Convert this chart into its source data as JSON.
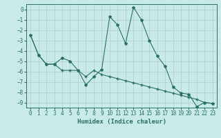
{
  "xlabel": "Humidex (Indice chaleur)",
  "ylabel": "",
  "bg_color": "#c8eaea",
  "grid_color": "#b0cccc",
  "line_color": "#2a7060",
  "line1_x": [
    0,
    1,
    2,
    3,
    4,
    5,
    6,
    7,
    8,
    9,
    10,
    11,
    12,
    13,
    14,
    15,
    16,
    17,
    18,
    19,
    20,
    21,
    22,
    23
  ],
  "line1_y": [
    -2.5,
    -4.4,
    -5.3,
    -5.3,
    -4.7,
    -5.0,
    -5.9,
    -7.3,
    -6.5,
    -5.8,
    -0.7,
    -1.5,
    -3.3,
    0.2,
    -1.0,
    -3.0,
    -4.5,
    -5.5,
    -7.5,
    -8.1,
    -8.2,
    -9.4,
    -9.0,
    -9.1
  ],
  "line2_x": [
    0,
    1,
    2,
    3,
    4,
    5,
    6,
    7,
    8,
    9,
    10,
    11,
    12,
    13,
    14,
    15,
    16,
    17,
    18,
    19,
    20,
    21,
    22,
    23
  ],
  "line2_y": [
    -2.5,
    -4.4,
    -5.3,
    -5.3,
    -5.9,
    -5.9,
    -5.9,
    -6.5,
    -5.9,
    -6.3,
    -6.5,
    -6.7,
    -6.9,
    -7.1,
    -7.3,
    -7.5,
    -7.7,
    -7.9,
    -8.1,
    -8.3,
    -8.5,
    -8.7,
    -9.0,
    -9.1
  ],
  "ylim": [
    -9.5,
    0.5
  ],
  "xlim": [
    -0.5,
    23.5
  ],
  "yticks": [
    0,
    -1,
    -2,
    -3,
    -4,
    -5,
    -6,
    -7,
    -8,
    -9
  ],
  "xticks": [
    0,
    1,
    2,
    3,
    4,
    5,
    6,
    7,
    8,
    9,
    10,
    11,
    12,
    13,
    14,
    15,
    16,
    17,
    18,
    19,
    20,
    21,
    22,
    23
  ],
  "figsize": [
    3.2,
    2.0
  ],
  "dpi": 100,
  "tick_fontsize": 5.5,
  "xlabel_fontsize": 6.5
}
